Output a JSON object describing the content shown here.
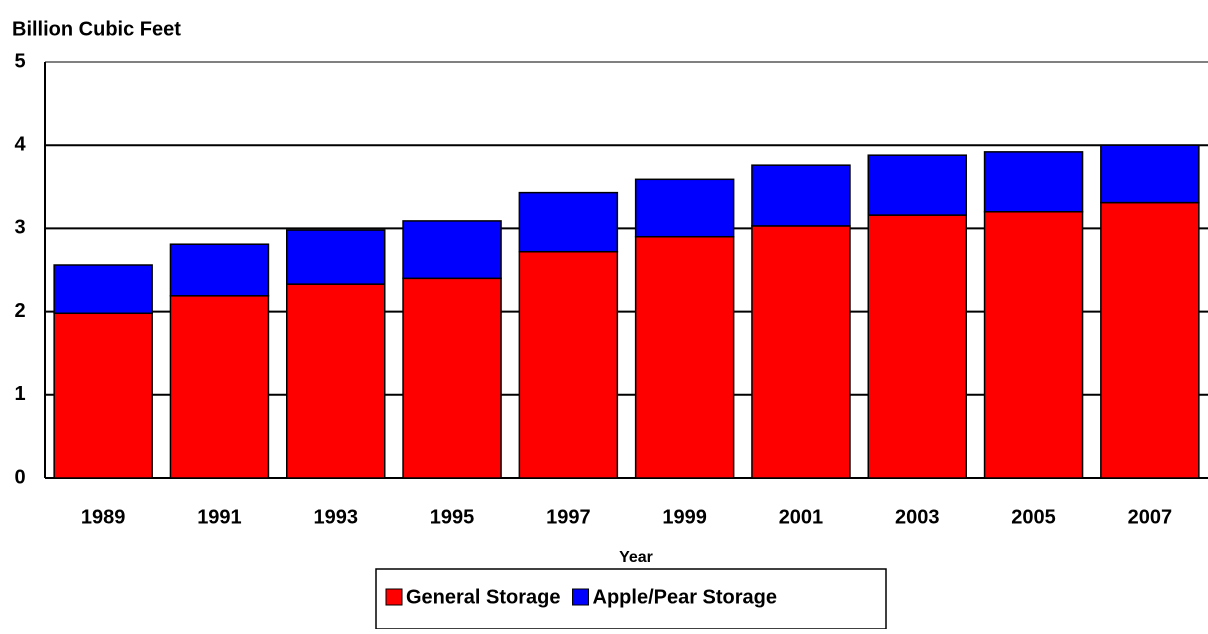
{
  "chart_data": {
    "type": "stacked_bar",
    "y_axis_label": "Billion Cubic Feet",
    "x_axis_label": "Year",
    "categories": [
      "1989",
      "1991",
      "1993",
      "1995",
      "1997",
      "1999",
      "2001",
      "2003",
      "2005",
      "2007"
    ],
    "series": [
      {
        "name": "General Storage",
        "color": "#ff0000",
        "values": [
          1.98,
          2.19,
          2.33,
          2.4,
          2.72,
          2.9,
          3.03,
          3.16,
          3.2,
          3.31
        ]
      },
      {
        "name": "Apple/Pear Storage",
        "color": "#0000ff",
        "values": [
          0.58,
          0.62,
          0.65,
          0.69,
          0.71,
          0.69,
          0.73,
          0.72,
          0.72,
          0.69
        ]
      }
    ],
    "ylim": [
      0,
      5
    ],
    "yticks": [
      0,
      1,
      2,
      3,
      4,
      5
    ],
    "grid": true,
    "legend": "bottom"
  }
}
